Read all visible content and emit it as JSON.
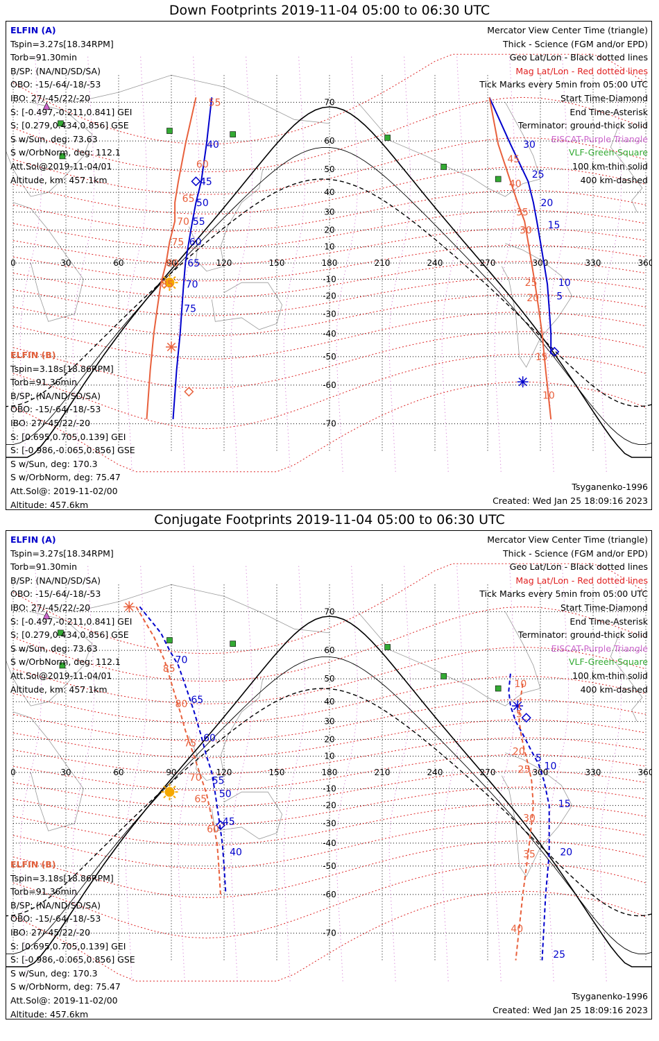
{
  "panels": [
    {
      "title": "Down Footprints 2019-11-04 05:00 to 06:30 UTC",
      "elfin_a": {
        "header": "ELFIN (A)",
        "lines": [
          "Tspin=3.27s[18.34RPM]",
          "Torb=91.30min",
          "B/SP: (NA/ND/SD/SA)",
          "OBO: -15/-64/-18/-53",
          "IBO: 27/-45/22/-20",
          "S: [-0.497,-0.211,0.841] GEI",
          "S: [0.279,0.434,0.856] GSE",
          "S w/Sun, deg: 73.63",
          "S w/OrbNorm, deg: 112.1",
          "Att.Sol@2019-11-04/01",
          "Altitude, km: 457.1km"
        ]
      },
      "elfin_b": {
        "header": "ELFIN (B)",
        "lines": [
          "Tspin=3.18s[18.86RPM]",
          "Torb=91.36min",
          "B/SP: (NA/ND/SD/SA)",
          "OBO: -15/-64/-18/-53",
          "IBO: 27/-45/22/-20",
          "S: [0.695,0.705,0.139] GEI",
          "S: [-0.986,-0.065,0.856] GSE",
          "S w/Sun, deg: 170.3",
          "S w/OrbNorm, deg: 75.47",
          "Att.Sol@: 2019-11-02/00",
          "Altitude: 457.6km"
        ]
      },
      "model": "Tsyganenko-1996",
      "created": "Created: Wed Jan 25 18:09:16 2023",
      "track_a": {
        "points": [
          [
            113,
            71
          ],
          [
            110,
            59
          ],
          [
            107,
            45
          ],
          [
            104,
            35
          ],
          [
            102,
            25
          ],
          [
            100,
            13
          ],
          [
            98,
            0
          ],
          [
            97,
            -13
          ],
          [
            96,
            -27
          ],
          [
            95,
            -40
          ],
          [
            93,
            -55
          ],
          [
            91,
            -69
          ]
        ],
        "ticks": [
          {
            "t": "40",
            "lon": 109,
            "lat": 59
          },
          {
            "t": "45",
            "lon": 105,
            "lat": 45
          },
          {
            "t": "50",
            "lon": 103,
            "lat": 35
          },
          {
            "t": "55",
            "lon": 101,
            "lat": 25
          },
          {
            "t": "60",
            "lon": 99,
            "lat": 13
          },
          {
            "t": "65",
            "lon": 98,
            "lat": 0
          },
          {
            "t": "70",
            "lon": 97,
            "lat": -13
          },
          {
            "t": "75",
            "lon": 96,
            "lat": -27
          }
        ],
        "start": {
          "lon": 104,
          "lat": 45
        },
        "end": null
      },
      "track_b": {
        "points": [
          [
            104,
            71
          ],
          [
            98,
            59
          ],
          [
            94,
            45
          ],
          [
            92,
            35
          ],
          [
            92,
            25
          ],
          [
            89,
            13
          ],
          [
            87,
            0
          ],
          [
            84,
            -13
          ],
          [
            82,
            -27
          ],
          [
            80,
            -40
          ],
          [
            78,
            -55
          ],
          [
            76,
            -69
          ]
        ],
        "ticks": [
          {
            "t": "55",
            "lon": 110,
            "lat": 70
          },
          {
            "t": "60",
            "lon": 103,
            "lat": 52
          },
          {
            "t": "65",
            "lon": 95,
            "lat": 37
          },
          {
            "t": "70",
            "lon": 92,
            "lat": 25
          },
          {
            "t": "75",
            "lon": 89,
            "lat": 13
          },
          {
            "t": "80",
            "lon": 86,
            "lat": 0
          },
          {
            "t": "85",
            "lon": 83,
            "lat": -13
          }
        ],
        "start": {
          "lon": 100,
          "lat": -62
        },
        "end": {
          "lon": 90,
          "lat": -46
        }
      },
      "track_a2": {
        "points": [
          [
            271,
            71
          ],
          [
            283,
            59
          ],
          [
            293,
            45
          ],
          [
            296,
            35
          ],
          [
            298,
            25
          ],
          [
            300,
            13
          ],
          [
            302,
            0
          ],
          [
            304,
            -13
          ],
          [
            305,
            -27
          ],
          [
            306,
            -40
          ],
          [
            306,
            -49
          ]
        ],
        "ticks": [
          {
            "t": "30",
            "lon": 289,
            "lat": 59
          },
          {
            "t": "25",
            "lon": 294,
            "lat": 48
          },
          {
            "t": "20",
            "lon": 299,
            "lat": 35
          },
          {
            "t": "15",
            "lon": 303,
            "lat": 23
          },
          {
            "t": "10",
            "lon": 309,
            "lat": -12
          },
          {
            "t": "5",
            "lon": 308,
            "lat": -20
          }
        ],
        "start": {
          "lon": 308,
          "lat": -48
        },
        "end": {
          "lon": 290,
          "lat": -59
        }
      },
      "track_b2": {
        "points": [
          [
            271,
            71
          ],
          [
            276,
            59
          ],
          [
            283,
            45
          ],
          [
            287,
            35
          ],
          [
            291,
            25
          ],
          [
            293,
            13
          ],
          [
            295,
            0
          ],
          [
            297,
            -13
          ],
          [
            299,
            -27
          ],
          [
            301,
            -40
          ],
          [
            303,
            -55
          ],
          [
            306,
            -69
          ]
        ],
        "ticks": [
          {
            "t": "45",
            "lon": 280,
            "lat": 54
          },
          {
            "t": "40",
            "lon": 281,
            "lat": 44
          },
          {
            "t": "35",
            "lon": 285,
            "lat": 30
          },
          {
            "t": "30",
            "lon": 287,
            "lat": 20
          },
          {
            "t": "25",
            "lon": 290,
            "lat": -12
          },
          {
            "t": "20",
            "lon": 291,
            "lat": -21
          },
          {
            "t": "15",
            "lon": 296,
            "lat": -50
          },
          {
            "t": "10",
            "lon": 300,
            "lat": -63
          }
        ]
      },
      "markers": [
        {
          "lon": 117,
          "lat": -4,
          "kind": "none"
        }
      ],
      "sun": {
        "lon": 89,
        "lat": -12
      },
      "dashed": false
    },
    {
      "title": "Conjugate Footprints 2019-11-04 05:00 to 06:30 UTC",
      "elfin_a": {
        "header": "ELFIN (A)",
        "lines": [
          "Tspin=3.27s[18.34RPM]",
          "Torb=91.30min",
          "B/SP: (NA/ND/SD/SA)",
          "OBO: -15/-64/-18/-53",
          "IBO: 27/-45/22/-20",
          "S: [-0.497,-0.211,0.841] GEI",
          "S: [0.279,0.434,0.856] GSE",
          "S w/Sun, deg: 73.63",
          "S w/OrbNorm, deg: 112.1",
          "Att.Sol@2019-11-04/01",
          "Altitude, km: 457.1km"
        ]
      },
      "elfin_b": {
        "header": "ELFIN (B)",
        "lines": [
          "Tspin=3.18s[18.86RPM]",
          "Torb=91.36min",
          "B/SP: (NA/ND/SD/SA)",
          "OBO: -15/-64/-18/-53",
          "IBO: 27/-45/22/-20",
          "S: [0.695,0.705,0.139] GEI",
          "S: [-0.986,-0.065,0.856] GSE",
          "S w/Sun, deg: 170.3",
          "S w/OrbNorm, deg: 75.47",
          "Att.Sol@: 2019-11-02/00",
          "Altitude: 457.6km"
        ]
      },
      "model": "Tsyganenko-1996",
      "created": "Created: Wed Jan 25 18:09:16 2023",
      "track_a": {
        "points": [
          [
            72,
            71
          ],
          [
            84,
            65
          ],
          [
            89,
            60
          ],
          [
            94,
            55
          ],
          [
            99,
            45
          ],
          [
            103,
            35
          ],
          [
            107,
            22
          ],
          [
            110,
            10
          ],
          [
            113,
            0
          ],
          [
            115,
            -13
          ],
          [
            117,
            -27
          ],
          [
            119,
            -40
          ],
          [
            120,
            -50
          ],
          [
            121,
            -60
          ]
        ],
        "ticks": [
          {
            "t": "70",
            "lon": 91,
            "lat": 57
          },
          {
            "t": "65",
            "lon": 100,
            "lat": 41
          },
          {
            "t": "60",
            "lon": 107,
            "lat": 21
          },
          {
            "t": "55",
            "lon": 112,
            "lat": -5
          },
          {
            "t": "50",
            "lon": 116,
            "lat": -13
          },
          {
            "t": "45",
            "lon": 118,
            "lat": -29
          },
          {
            "t": "40",
            "lon": 122,
            "lat": -44
          }
        ],
        "start": {
          "lon": 118,
          "lat": -31
        },
        "end": null
      },
      "track_b": {
        "points": [
          [
            70,
            71
          ],
          [
            80,
            64
          ],
          [
            86,
            57
          ],
          [
            91,
            46
          ],
          [
            95,
            35
          ],
          [
            98,
            25
          ],
          [
            102,
            13
          ],
          [
            106,
            0
          ],
          [
            110,
            -13
          ],
          [
            113,
            -27
          ],
          [
            116,
            -40
          ],
          [
            117,
            -50
          ],
          [
            118,
            -60
          ]
        ],
        "ticks": [
          {
            "t": "85",
            "lon": 84,
            "lat": 54
          },
          {
            "t": "80",
            "lon": 91,
            "lat": 39
          },
          {
            "t": "75",
            "lon": 96,
            "lat": 18
          },
          {
            "t": "70",
            "lon": 99,
            "lat": -3
          },
          {
            "t": "65",
            "lon": 102,
            "lat": -16
          },
          {
            "t": "60",
            "lon": 109,
            "lat": -33
          }
        ],
        "start": null,
        "end": {
          "lon": 66,
          "lat": 71
        }
      },
      "track_a2": {
        "points": [
          [
            283,
            52
          ],
          [
            282,
            45
          ],
          [
            283,
            38
          ],
          [
            286,
            30
          ],
          [
            290,
            23
          ],
          [
            295,
            13
          ],
          [
            299,
            5
          ],
          [
            302,
            -5
          ],
          [
            305,
            -20
          ],
          [
            305,
            -30
          ],
          [
            305,
            -45
          ],
          [
            303,
            -60
          ],
          [
            301,
            -75
          ]
        ],
        "ticks": [
          {
            "t": "5",
            "lon": 296,
            "lat": 9
          },
          {
            "t": "10",
            "lon": 301,
            "lat": 4
          },
          {
            "t": "15",
            "lon": 309,
            "lat": -19
          },
          {
            "t": "20",
            "lon": 310,
            "lat": -44
          },
          {
            "t": "25",
            "lon": 306,
            "lat": -74
          }
        ],
        "start": {
          "lon": 292,
          "lat": 32
        },
        "end": {
          "lon": 287,
          "lat": 38
        }
      },
      "track_b2": {
        "points": [
          [
            290,
            48
          ],
          [
            289,
            43
          ],
          [
            288,
            38
          ],
          [
            288,
            30
          ],
          [
            289,
            23
          ],
          [
            291,
            13
          ],
          [
            293,
            5
          ],
          [
            295,
            -5
          ],
          [
            296,
            -20
          ],
          [
            295,
            -30
          ],
          [
            293,
            -45
          ],
          [
            290,
            -60
          ],
          [
            286,
            -75
          ]
        ],
        "ticks": [
          {
            "t": "10",
            "lon": 284,
            "lat": 48
          },
          {
            "t": "5",
            "lon": 285,
            "lat": 34
          },
          {
            "t": "20",
            "lon": 283,
            "lat": 13
          },
          {
            "t": "25",
            "lon": 286,
            "lat": 2
          },
          {
            "t": "30",
            "lon": 289,
            "lat": -27
          },
          {
            "t": "35",
            "lon": 289,
            "lat": -45
          },
          {
            "t": "40",
            "lon": 282,
            "lat": -69
          }
        ]
      },
      "markers": [],
      "sun": {
        "lon": 89,
        "lat": -12
      },
      "dashed": true
    }
  ],
  "legend": [
    "Mercator View Center Time (triangle)",
    "Thick - Science (FGM and/or EPD)",
    "Geo Lat/Lon - Black dotted lines",
    "Mag Lat/Lon - Red dotted lines",
    "Tick Marks every 5min from 05:00 UTC",
    "Start Time-Diamond",
    "End Time-Asterisk",
    "Terminator: ground-thick solid",
    "EISCAT-Purple Triangle",
    "VLF-Green-Square",
    "100 km-thin solid",
    "400 km-dashed"
  ],
  "legend_colors": [
    "#000000",
    "#000000",
    "#000000",
    "#e02020",
    "#000000",
    "#000000",
    "#000000",
    "#000000",
    "#cc66cc",
    "#33aa33",
    "#000000",
    "#000000"
  ],
  "axis": {
    "lon_ticks": [
      "0",
      "30",
      "60",
      "90",
      "120",
      "150",
      "180",
      "210",
      "240",
      "270",
      "300",
      "330",
      "360"
    ],
    "lat_ticks": [
      {
        "t": "70",
        "v": 70
      },
      {
        "t": "60",
        "v": 60
      },
      {
        "t": "50",
        "v": 50
      },
      {
        "t": "40",
        "v": 40
      },
      {
        "t": "30",
        "v": 30
      },
      {
        "t": "20",
        "v": 20
      },
      {
        "t": "10",
        "v": 10
      },
      {
        "t": "-10",
        "v": -10
      },
      {
        "t": "-20",
        "v": -20
      },
      {
        "t": "-30",
        "v": -30
      },
      {
        "t": "-40",
        "v": -40
      },
      {
        "t": "-50",
        "v": -50
      },
      {
        "t": "-60",
        "v": -60
      },
      {
        "t": "-70",
        "v": -70
      }
    ]
  },
  "vlf_stations": [
    {
      "lon": 89,
      "lat": 63
    },
    {
      "lon": 27,
      "lat": 65
    },
    {
      "lon": 28,
      "lat": 55
    },
    {
      "lon": 125,
      "lat": 62
    },
    {
      "lon": 213,
      "lat": 61
    },
    {
      "lon": 245,
      "lat": 51
    },
    {
      "lon": 276,
      "lat": 46
    }
  ],
  "eiscat": [
    {
      "lon": 19,
      "lat": 69
    }
  ],
  "colors": {
    "elfin_a": "#0000cc",
    "elfin_b": "#e8603c",
    "geo_grid": "#000000",
    "mag_grid": "#dd2222",
    "eiscat": "#cc66cc",
    "vlf": "#33aa33",
    "sun": "#f5a800",
    "coast": "#999999"
  }
}
